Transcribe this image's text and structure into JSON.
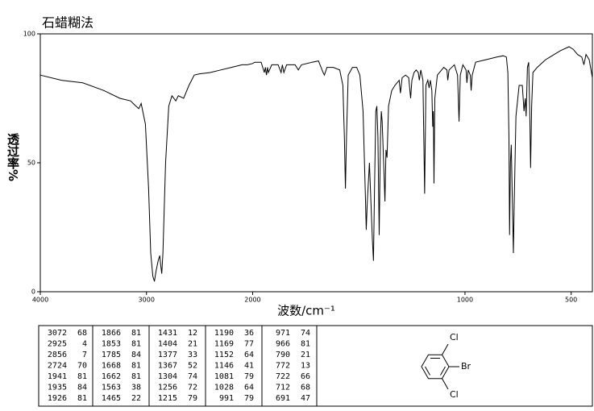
{
  "chart_data": {
    "type": "line",
    "title": "石蜡糊法",
    "x_label": "波数/cm⁻¹",
    "y_label": "透过率%",
    "color": "#000000",
    "xlim": [
      4000,
      400
    ],
    "x_scale_break": 2000,
    "x_scale_ratio": 2,
    "xticks": [
      4000,
      3000,
      2000,
      1000,
      500
    ],
    "ylim": [
      0,
      100
    ],
    "yticks": [
      0,
      50,
      100
    ],
    "x": [
      4000,
      3800,
      3600,
      3400,
      3250,
      3150,
      3100,
      3072,
      3050,
      3010,
      2980,
      2960,
      2940,
      2925,
      2910,
      2890,
      2875,
      2865,
      2856,
      2845,
      2820,
      2790,
      2760,
      2724,
      2700,
      2650,
      2600,
      2550,
      2500,
      2400,
      2300,
      2200,
      2100,
      2050,
      2000,
      1990,
      1960,
      1945,
      1940,
      1935,
      1930,
      1926,
      1910,
      1880,
      1866,
      1860,
      1853,
      1840,
      1800,
      1785,
      1770,
      1720,
      1690,
      1668,
      1662,
      1650,
      1620,
      1590,
      1575,
      1568,
      1563,
      1558,
      1550,
      1530,
      1510,
      1495,
      1480,
      1470,
      1465,
      1460,
      1450,
      1443,
      1436,
      1431,
      1426,
      1420,
      1415,
      1410,
      1404,
      1398,
      1394,
      1390,
      1383,
      1377,
      1372,
      1367,
      1360,
      1345,
      1330,
      1310,
      1304,
      1296,
      1280,
      1265,
      1256,
      1250,
      1240,
      1230,
      1220,
      1215,
      1208,
      1198,
      1190,
      1184,
      1175,
      1169,
      1163,
      1156,
      1152,
      1149,
      1146,
      1142,
      1130,
      1100,
      1085,
      1081,
      1075,
      1050,
      1035,
      1028,
      1022,
      1010,
      995,
      991,
      985,
      975,
      971,
      966,
      950,
      900,
      850,
      820,
      805,
      798,
      793,
      790,
      786,
      782,
      778,
      772,
      768,
      760,
      745,
      730,
      722,
      716,
      712,
      706,
      700,
      695,
      691,
      686,
      680,
      660,
      620,
      600,
      550,
      510,
      490,
      470,
      450,
      440,
      430,
      415,
      400
    ],
    "values": [
      84,
      82,
      81,
      78,
      75,
      74,
      72,
      71,
      73,
      65,
      40,
      15,
      6,
      4,
      8,
      12,
      14,
      10,
      7,
      15,
      50,
      72,
      76,
      74,
      76,
      75,
      80,
      84,
      84.5,
      85,
      86,
      87,
      88,
      88,
      88.5,
      89,
      89,
      85,
      87,
      84,
      87,
      85,
      88,
      88,
      85,
      88,
      85,
      88,
      88,
      86,
      88,
      89,
      89.5,
      85,
      84,
      87,
      87,
      86,
      80,
      60,
      40,
      60,
      84,
      87,
      87,
      84,
      70,
      40,
      24,
      35,
      50,
      35,
      20,
      12,
      40,
      70,
      72,
      60,
      22,
      60,
      70,
      66,
      50,
      35,
      55,
      52,
      72,
      78,
      80,
      82,
      77,
      83,
      84,
      83,
      75,
      82,
      85,
      86,
      85,
      82,
      86,
      82,
      38,
      80,
      82,
      79,
      82,
      78,
      64,
      70,
      42,
      75,
      84,
      87,
      86,
      82,
      86,
      88,
      84,
      66,
      84,
      88,
      86,
      81,
      86,
      84,
      78,
      84,
      89,
      90,
      91,
      91.5,
      91,
      85,
      60,
      22,
      50,
      57,
      40,
      15,
      35,
      68,
      80,
      80,
      70,
      75,
      68,
      87,
      89,
      70,
      48,
      72,
      85,
      87,
      90,
      91,
      93.5,
      95,
      94,
      92,
      91,
      88,
      92,
      90,
      83
    ]
  },
  "peak_table": [
    [
      3072,
      68
    ],
    [
      2925,
      4
    ],
    [
      2856,
      7
    ],
    [
      2724,
      70
    ],
    [
      1941,
      81
    ],
    [
      1935,
      84
    ],
    [
      1926,
      81
    ],
    [
      1866,
      81
    ],
    [
      1853,
      81
    ],
    [
      1785,
      84
    ],
    [
      1668,
      81
    ],
    [
      1662,
      81
    ],
    [
      1563,
      38
    ],
    [
      1465,
      22
    ],
    [
      1431,
      12
    ],
    [
      1404,
      21
    ],
    [
      1377,
      33
    ],
    [
      1367,
      52
    ],
    [
      1304,
      74
    ],
    [
      1256,
      72
    ],
    [
      1215,
      79
    ],
    [
      1190,
      36
    ],
    [
      1169,
      77
    ],
    [
      1152,
      64
    ],
    [
      1146,
      41
    ],
    [
      1081,
      79
    ],
    [
      1028,
      64
    ],
    [
      991,
      79
    ],
    [
      971,
      74
    ],
    [
      966,
      81
    ],
    [
      790,
      21
    ],
    [
      772,
      13
    ],
    [
      722,
      66
    ],
    [
      712,
      68
    ],
    [
      691,
      47
    ]
  ],
  "structure": {
    "atoms": [
      "Cl",
      "Br",
      "Cl"
    ]
  }
}
